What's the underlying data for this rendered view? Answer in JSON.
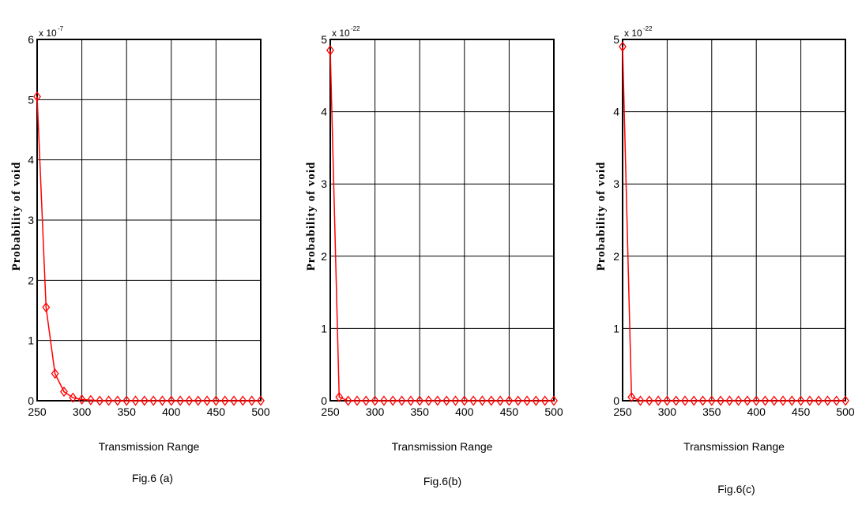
{
  "chart_data": [
    {
      "type": "line",
      "caption": "Fig.6 (a)",
      "title": "",
      "xlabel": "Transmission Range",
      "ylabel": "Probability of void",
      "exponent_label": "x 10",
      "exponent_power": "-7",
      "xlim": [
        250,
        500
      ],
      "ylim": [
        0,
        6
      ],
      "xticks": [
        250,
        300,
        350,
        400,
        450,
        500
      ],
      "yticks": [
        0,
        1,
        2,
        3,
        4,
        5,
        6
      ],
      "grid": true,
      "marker": "diamond",
      "line_color": "#ff0000",
      "series": [
        {
          "x": [
            250,
            260,
            270,
            280,
            290,
            300,
            310,
            320,
            330,
            340,
            350,
            360,
            370,
            380,
            390,
            400,
            410,
            420,
            430,
            440,
            450,
            460,
            470,
            480,
            490,
            500
          ],
          "values": [
            5.05,
            1.55,
            0.45,
            0.15,
            0.05,
            0.02,
            0.01,
            0,
            0,
            0,
            0,
            0,
            0,
            0,
            0,
            0,
            0,
            0,
            0,
            0,
            0,
            0,
            0,
            0,
            0,
            0
          ]
        }
      ]
    },
    {
      "type": "line",
      "caption": "Fig.6(b)",
      "title": "",
      "xlabel": "Transmission Range",
      "ylabel": "Probability of void",
      "exponent_label": "x 10",
      "exponent_power": "-22",
      "xlim": [
        250,
        500
      ],
      "ylim": [
        0,
        5
      ],
      "xticks": [
        250,
        300,
        350,
        400,
        450,
        500
      ],
      "yticks": [
        0,
        1,
        2,
        3,
        4,
        5
      ],
      "grid": true,
      "marker": "diamond",
      "line_color": "#ff0000",
      "series": [
        {
          "x": [
            250,
            260,
            270,
            280,
            290,
            300,
            310,
            320,
            330,
            340,
            350,
            360,
            370,
            380,
            390,
            400,
            410,
            420,
            430,
            440,
            450,
            460,
            470,
            480,
            490,
            500
          ],
          "values": [
            4.85,
            0.05,
            0,
            0,
            0,
            0,
            0,
            0,
            0,
            0,
            0,
            0,
            0,
            0,
            0,
            0,
            0,
            0,
            0,
            0,
            0,
            0,
            0,
            0,
            0,
            0
          ]
        }
      ]
    },
    {
      "type": "line",
      "caption": "Fig.6(c)",
      "title": "",
      "xlabel": "Transmission Range",
      "ylabel": "Probability of void",
      "exponent_label": "x 10",
      "exponent_power": "-22",
      "xlim": [
        250,
        500
      ],
      "ylim": [
        0,
        5
      ],
      "xticks": [
        250,
        300,
        350,
        400,
        450,
        500
      ],
      "yticks": [
        0,
        1,
        2,
        3,
        4,
        5
      ],
      "grid": true,
      "marker": "diamond",
      "line_color": "#ff0000",
      "series": [
        {
          "x": [
            250,
            260,
            270,
            280,
            290,
            300,
            310,
            320,
            330,
            340,
            350,
            360,
            370,
            380,
            390,
            400,
            410,
            420,
            430,
            440,
            450,
            460,
            470,
            480,
            490,
            500
          ],
          "values": [
            4.9,
            0.05,
            0,
            0,
            0,
            0,
            0,
            0,
            0,
            0,
            0,
            0,
            0,
            0,
            0,
            0,
            0,
            0,
            0,
            0,
            0,
            0,
            0,
            0,
            0,
            0
          ]
        }
      ]
    }
  ]
}
